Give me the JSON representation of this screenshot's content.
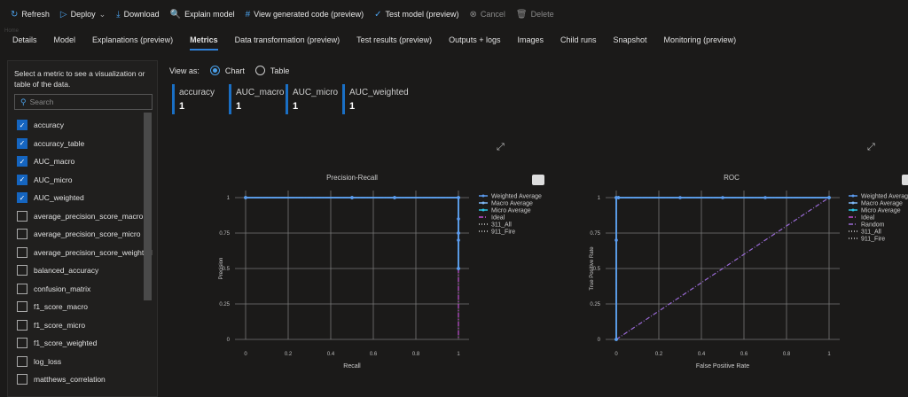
{
  "toolbar": [
    {
      "label": "Refresh",
      "icon": "refresh-icon",
      "g": "↻"
    },
    {
      "label": "Deploy",
      "icon": "deploy-icon",
      "g": "▷",
      "chev": "⌄"
    },
    {
      "label": "Download",
      "icon": "download-icon",
      "g": "⤓"
    },
    {
      "label": "Explain model",
      "icon": "explain-icon",
      "g": "🔍"
    },
    {
      "label": "View generated code (preview)",
      "icon": "code-icon",
      "g": "#"
    },
    {
      "label": "Test model (preview)",
      "icon": "check-icon",
      "g": "✓"
    },
    {
      "label": "Cancel",
      "icon": "cancel-icon",
      "g": "⊗",
      "disabled": true
    },
    {
      "label": "Delete",
      "icon": "delete-icon",
      "g": "🗑",
      "disabled": true
    }
  ],
  "breadcrumb": "Home",
  "tabs": [
    "Details",
    "Model",
    "Explanations (preview)",
    "Metrics",
    "Data transformation (preview)",
    "Test results (preview)",
    "Outputs + logs",
    "Images",
    "Child runs",
    "Snapshot",
    "Monitoring (preview)"
  ],
  "active_tab": "Metrics",
  "panel": {
    "description": "Select a metric to see a visualization or table of the data.",
    "search_placeholder": "Search",
    "metrics": [
      {
        "name": "accuracy",
        "checked": true
      },
      {
        "name": "accuracy_table",
        "checked": true
      },
      {
        "name": "AUC_macro",
        "checked": true
      },
      {
        "name": "AUC_micro",
        "checked": true
      },
      {
        "name": "AUC_weighted",
        "checked": true
      },
      {
        "name": "average_precision_score_macro",
        "checked": false
      },
      {
        "name": "average_precision_score_micro",
        "checked": false
      },
      {
        "name": "average_precision_score_weighted",
        "checked": false
      },
      {
        "name": "balanced_accuracy",
        "checked": false
      },
      {
        "name": "confusion_matrix",
        "checked": false
      },
      {
        "name": "f1_score_macro",
        "checked": false
      },
      {
        "name": "f1_score_micro",
        "checked": false
      },
      {
        "name": "f1_score_weighted",
        "checked": false
      },
      {
        "name": "log_loss",
        "checked": false
      },
      {
        "name": "matthews_correlation",
        "checked": false
      }
    ]
  },
  "view_as": {
    "label": "View as:",
    "options": [
      "Chart",
      "Table"
    ],
    "selected": "Chart"
  },
  "cards": [
    {
      "name": "accuracy",
      "value": "1"
    },
    {
      "name": "AUC_macro",
      "value": "1"
    },
    {
      "name": "AUC_micro",
      "value": "1"
    },
    {
      "name": "AUC_weighted",
      "value": "1"
    }
  ],
  "colors": {
    "accent": "#1a6fc4",
    "weighted": "#5b9bf0",
    "macro": "#7fb8f5",
    "micro": "#29c5e6",
    "ideal": "#c44fd6",
    "random": "#9a6ad6",
    "series311": "#d0d0d0",
    "series911": "#d0d0d0"
  },
  "chart_data": [
    {
      "type": "line",
      "title": "Precision-Recall",
      "xlabel": "Recall",
      "ylabel": "Precision",
      "xlim": [
        0,
        1
      ],
      "ylim": [
        0,
        1
      ],
      "xticks": [
        "0",
        "0.2",
        "0.4",
        "0.6",
        "0.8",
        "1"
      ],
      "yticks": [
        "0",
        "0.25",
        "0.5",
        "0.75",
        "1"
      ],
      "grid": true,
      "legend": "right",
      "series": [
        {
          "name": "Weighted Average",
          "x": [
            0,
            0.5,
            0.7,
            1,
            1,
            1,
            1,
            1
          ],
          "y": [
            1,
            1,
            1,
            1,
            0.85,
            0.75,
            0.7,
            0.5
          ]
        },
        {
          "name": "Macro Average",
          "x": [
            0,
            0.5,
            0.7,
            1,
            1,
            1
          ],
          "y": [
            1,
            1,
            1,
            1,
            0.75,
            0.5
          ]
        },
        {
          "name": "Micro Average",
          "x": [
            0,
            0.5,
            0.7,
            1,
            1
          ],
          "y": [
            1,
            1,
            1,
            1,
            0.5
          ]
        },
        {
          "name": "Ideal",
          "x": [
            0,
            1,
            1
          ],
          "y": [
            1,
            1,
            0
          ]
        },
        {
          "name": "311_All",
          "x": [
            0,
            1
          ],
          "y": [
            1,
            1
          ]
        },
        {
          "name": "911_Fire",
          "x": [
            0,
            1
          ],
          "y": [
            1,
            1
          ]
        }
      ]
    },
    {
      "type": "line",
      "title": "ROC",
      "xlabel": "False Positive Rate",
      "ylabel": "True Positive Rate",
      "xlim": [
        0,
        1
      ],
      "ylim": [
        0,
        1
      ],
      "xticks": [
        "0",
        "0.2",
        "0.4",
        "0.6",
        "0.8",
        "1"
      ],
      "yticks": [
        "0",
        "0.25",
        "0.5",
        "0.75",
        "1"
      ],
      "grid": true,
      "legend": "right",
      "series": [
        {
          "name": "Weighted Average",
          "x": [
            0,
            0,
            0,
            0.01,
            0.3,
            0.5,
            0.7,
            1
          ],
          "y": [
            0,
            0.7,
            1,
            1,
            1,
            1,
            1,
            1
          ]
        },
        {
          "name": "Macro Average",
          "x": [
            0,
            0,
            0.01,
            1
          ],
          "y": [
            0,
            1,
            1,
            1
          ]
        },
        {
          "name": "Micro Average",
          "x": [
            0,
            0,
            0.01,
            1
          ],
          "y": [
            0,
            1,
            1,
            1
          ]
        },
        {
          "name": "Ideal",
          "x": [
            0,
            0,
            1
          ],
          "y": [
            0,
            1,
            1
          ]
        },
        {
          "name": "Random",
          "x": [
            0,
            1
          ],
          "y": [
            0,
            1
          ]
        },
        {
          "name": "311_All",
          "x": [
            0,
            0,
            1
          ],
          "y": [
            0,
            1,
            1
          ]
        },
        {
          "name": "911_Fire",
          "x": [
            0,
            0,
            1
          ],
          "y": [
            0,
            1,
            1
          ]
        }
      ]
    }
  ]
}
